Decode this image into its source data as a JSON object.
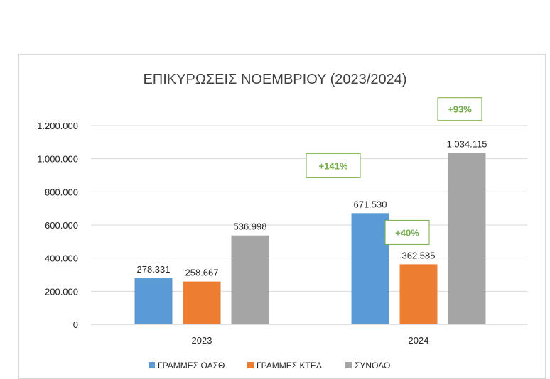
{
  "chart_data": {
    "type": "bar",
    "title": "ΕΠΙΚΥΡΩΣΕΙΣ ΝΟΕΜΒΡΙΟΥ (2023/2024)",
    "categories": [
      "2023",
      "2024"
    ],
    "series": [
      {
        "name": "ΓΡΑΜΜΕΣ ΟΑΣΘ",
        "color": "#5b9bd5",
        "values": [
          278331,
          671530
        ],
        "labels": [
          "278.331",
          "671.530"
        ]
      },
      {
        "name": "ΓΡΑΜΜΕΣ ΚΤΕΛ",
        "color": "#ed7d31",
        "values": [
          258667,
          362585
        ],
        "labels": [
          "258.667",
          "362.585"
        ]
      },
      {
        "name": "ΣΥΝΟΛΟ",
        "color": "#a5a5a5",
        "values": [
          536998,
          1034115
        ],
        "labels": [
          "536.998",
          "1.034.115"
        ]
      }
    ],
    "ylim": [
      0,
      1200000
    ],
    "yticks": [
      0,
      200000,
      400000,
      600000,
      800000,
      1000000,
      1200000
    ],
    "ytick_labels": [
      "0",
      "200.000",
      "400.000",
      "600.000",
      "800.000",
      "1.000.000",
      "1.200.000"
    ],
    "annotations": [
      {
        "text": "+141%",
        "series": 0,
        "category": 1,
        "color": "#70ad47"
      },
      {
        "text": "+40%",
        "series": 1,
        "category": 1,
        "color": "#70ad47"
      },
      {
        "text": "+93%",
        "series": 2,
        "category": 1,
        "color": "#70ad47"
      }
    ],
    "legend_position": "bottom",
    "grid": true
  }
}
